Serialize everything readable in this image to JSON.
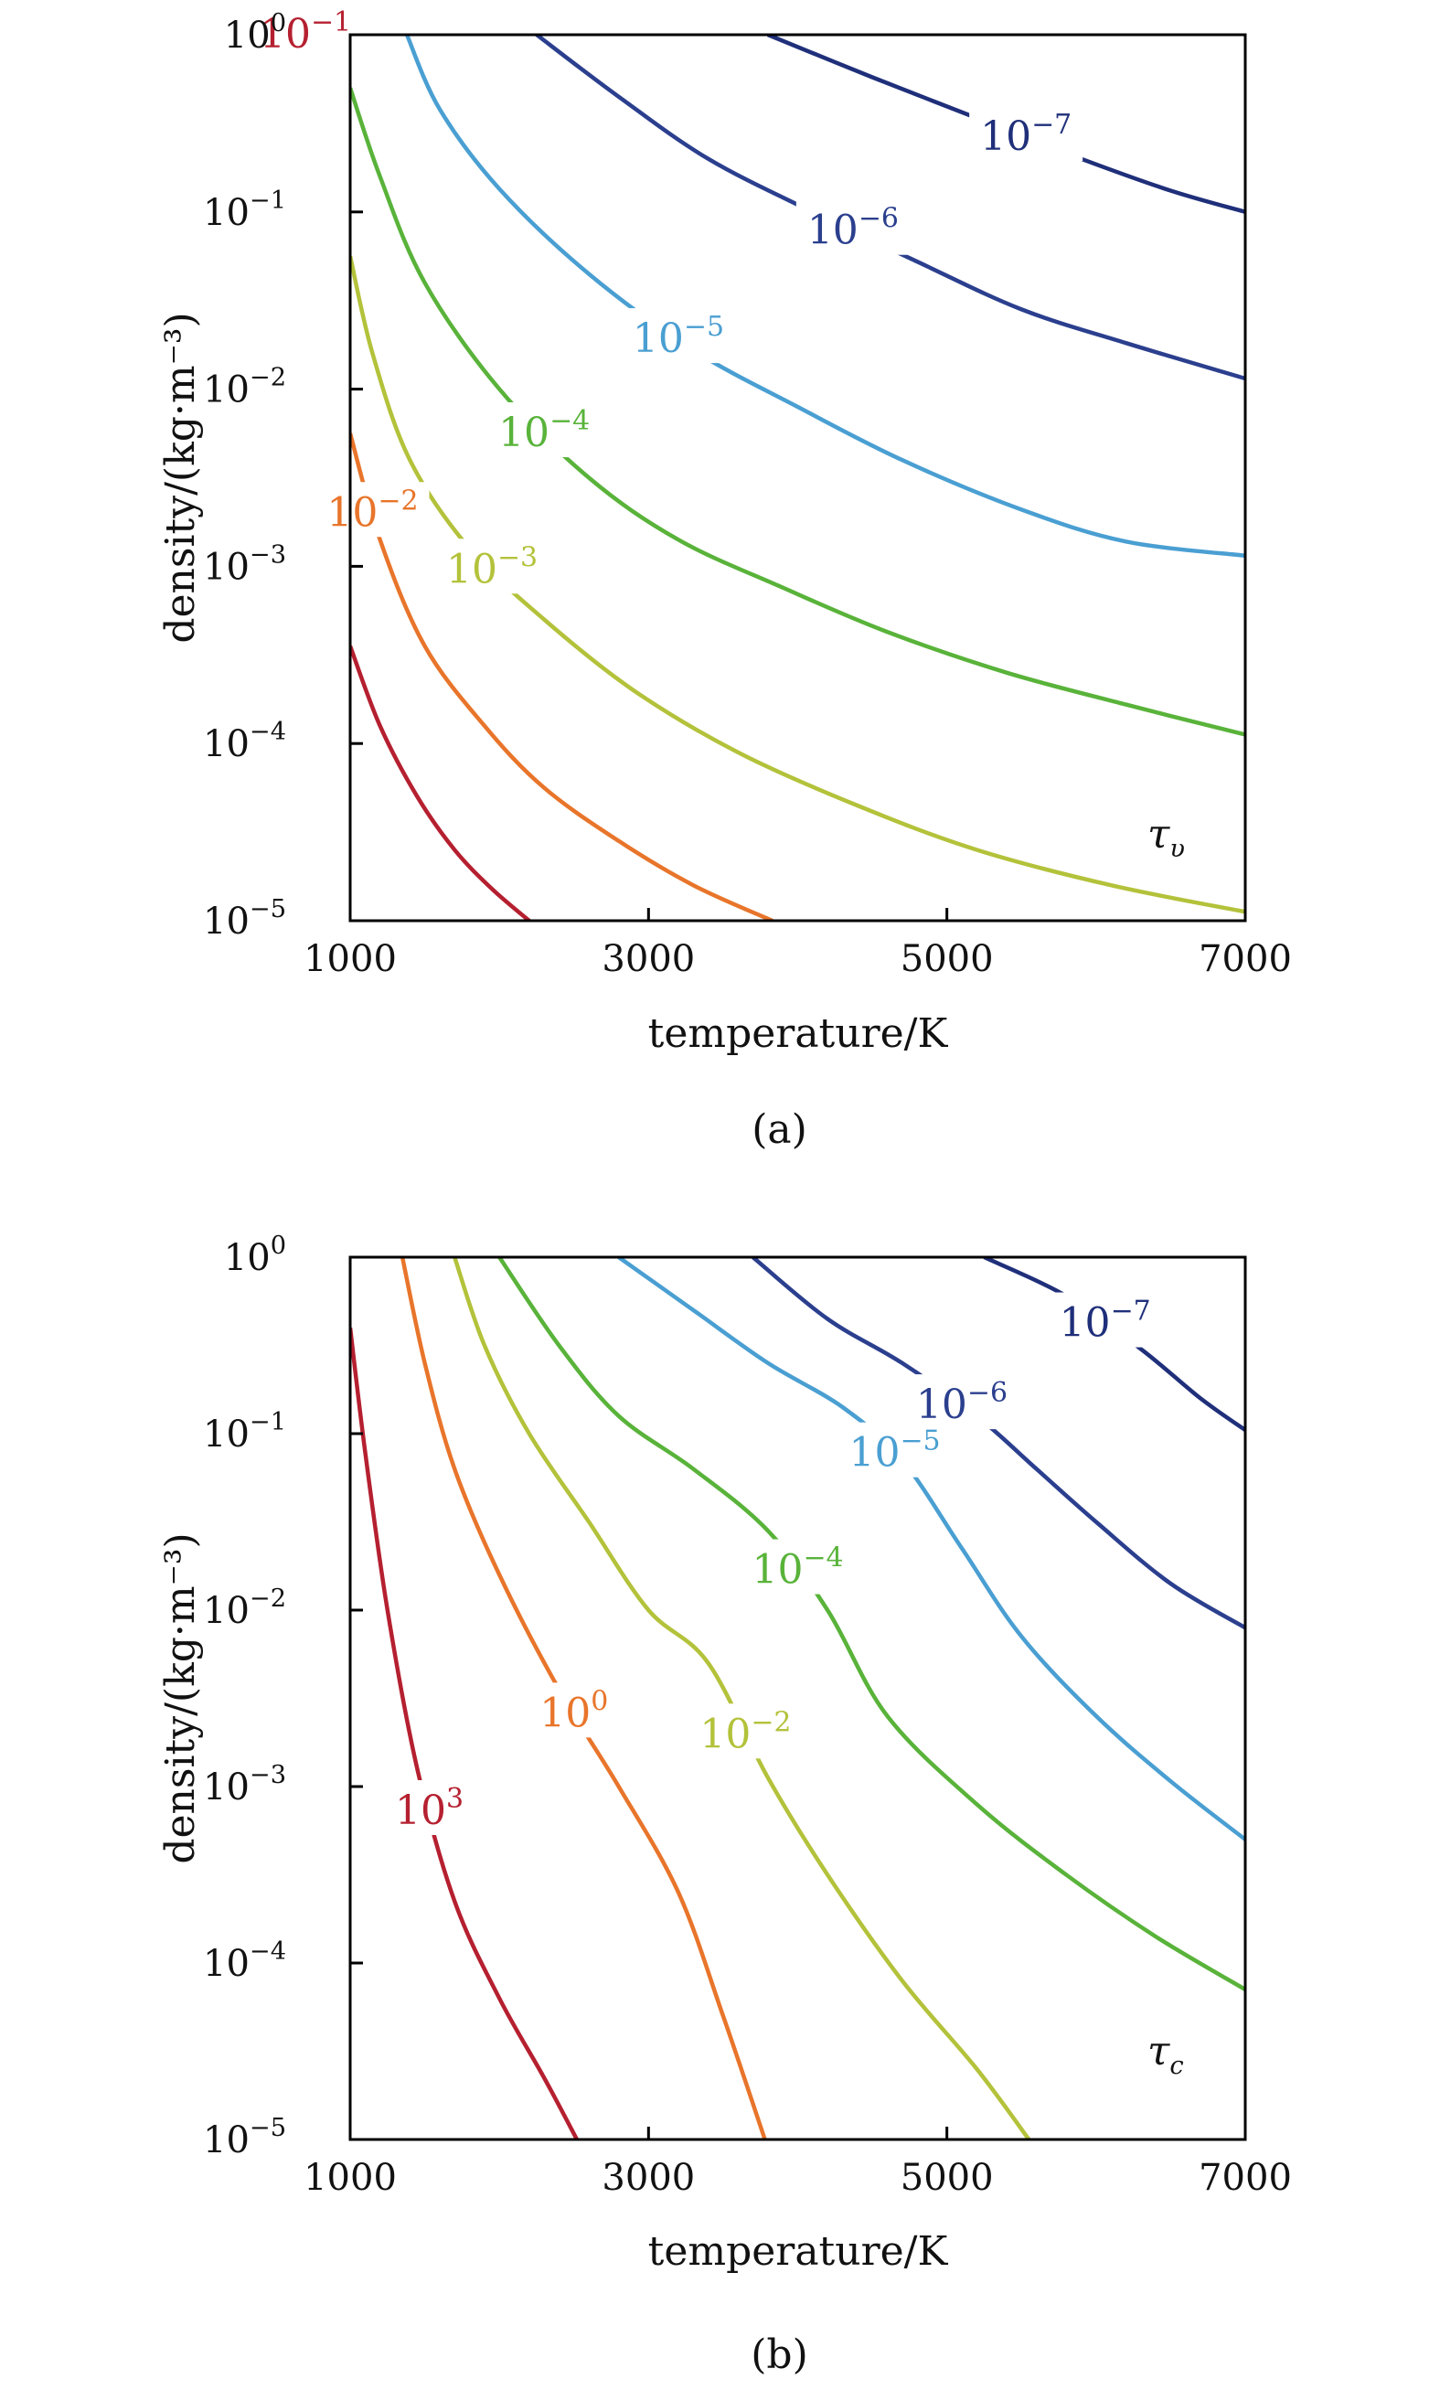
{
  "chart_data": [
    {
      "type": "line",
      "panel": "(a)",
      "xlabel": "temperature/K",
      "ylabel": "density/(kg·m⁻³)",
      "xlim": [
        1000,
        7000
      ],
      "ylim_log10": [
        -5,
        0
      ],
      "yscale": "log",
      "x_ticks": [
        "1000",
        "3000",
        "5000",
        "7000"
      ],
      "y_ticks": [
        {
          "base": "10",
          "exp": "0"
        },
        {
          "base": "10",
          "exp": "−1"
        },
        {
          "base": "10",
          "exp": "−2"
        },
        {
          "base": "10",
          "exp": "−3"
        },
        {
          "base": "10",
          "exp": "−4"
        },
        {
          "base": "10",
          "exp": "−5"
        }
      ],
      "symbol_main": "τ",
      "symbol_sub": "υ",
      "series": [
        {
          "label_base": "10",
          "label_exp": "−7",
          "color": "#1f2f7a",
          "x": [
            3800,
            4500,
            5200,
            5900,
            6500,
            7000
          ],
          "log10_y": [
            0,
            -0.24,
            -0.47,
            -0.7,
            -0.88,
            -1.0
          ]
        },
        {
          "label_base": "10",
          "label_exp": "−6",
          "color": "#2b3f8e",
          "x": [
            2250,
            2800,
            3400,
            4100,
            4800,
            5500,
            6200,
            7000
          ],
          "log10_y": [
            0,
            -0.35,
            -0.7,
            -1.0,
            -1.28,
            -1.55,
            -1.74,
            -1.94
          ]
        },
        {
          "label_base": "10",
          "label_exp": "−5",
          "color": "#4a9fd2",
          "x": [
            1380,
            1600,
            2000,
            2600,
            3300,
            4000,
            4700,
            5500,
            6200,
            7000
          ],
          "log10_y": [
            0,
            -0.42,
            -0.87,
            -1.35,
            -1.78,
            -2.1,
            -2.4,
            -2.68,
            -2.86,
            -2.94
          ]
        },
        {
          "label_base": "10",
          "label_exp": "−4",
          "color": "#59b33a",
          "x": [
            1000,
            1200,
            1500,
            2000,
            2600,
            3200,
            3900,
            4600,
            5400,
            6200,
            7000
          ],
          "log10_y": [
            -0.3,
            -0.8,
            -1.4,
            -2.0,
            -2.5,
            -2.85,
            -3.12,
            -3.37,
            -3.6,
            -3.78,
            -3.95
          ]
        },
        {
          "label_base": "10",
          "label_exp": "−3",
          "color": "#b3c23a",
          "x": [
            1000,
            1150,
            1400,
            1800,
            2300,
            2900,
            3600,
            4400,
            5200,
            6100,
            7000
          ],
          "log10_y": [
            -1.25,
            -1.8,
            -2.4,
            -2.9,
            -3.3,
            -3.7,
            -4.05,
            -4.35,
            -4.6,
            -4.8,
            -4.95
          ]
        },
        {
          "label_base": "10",
          "label_exp": "−2",
          "color": "#e8752b",
          "x": [
            1000,
            1200,
            1500,
            1900,
            2300,
            2800,
            3300,
            3830
          ],
          "log10_y": [
            -2.25,
            -2.85,
            -3.45,
            -3.9,
            -4.25,
            -4.55,
            -4.8,
            -5.0
          ]
        },
        {
          "label_base": "10",
          "label_exp": "−1",
          "color": "#b52030",
          "x": [
            1000,
            1200,
            1450,
            1700,
            1950,
            2200
          ],
          "log10_y": [
            -3.45,
            -3.9,
            -4.3,
            -4.6,
            -4.82,
            -5.0
          ]
        }
      ]
    },
    {
      "type": "line",
      "panel": "(b)",
      "xlabel": "temperature/K",
      "ylabel": "density/(kg·m⁻³)",
      "xlim": [
        1000,
        7000
      ],
      "ylim_log10": [
        -5,
        0
      ],
      "yscale": "log",
      "x_ticks": [
        "1000",
        "3000",
        "5000",
        "7000"
      ],
      "y_ticks": [
        {
          "base": "10",
          "exp": "0"
        },
        {
          "base": "10",
          "exp": "−1"
        },
        {
          "base": "10",
          "exp": "−2"
        },
        {
          "base": "10",
          "exp": "−3"
        },
        {
          "base": "10",
          "exp": "−4"
        },
        {
          "base": "10",
          "exp": "−5"
        }
      ],
      "symbol_main": "τ",
      "symbol_sub": "c",
      "series": [
        {
          "label_base": "10",
          "label_exp": "−7",
          "color": "#1f2f7a",
          "x": [
            5250,
            5800,
            6300,
            6700,
            7000
          ],
          "log10_y": [
            0,
            -0.22,
            -0.52,
            -0.8,
            -0.98
          ]
        },
        {
          "label_base": "10",
          "label_exp": "−6",
          "color": "#2b3f8e",
          "x": [
            3700,
            4200,
            4700,
            5200,
            5600,
            6000,
            6500,
            7000
          ],
          "log10_y": [
            0,
            -0.35,
            -0.6,
            -0.9,
            -1.2,
            -1.5,
            -1.85,
            -2.1
          ]
        },
        {
          "label_base": "10",
          "label_exp": "−5",
          "color": "#4a9fd2",
          "x": [
            2800,
            3300,
            3800,
            4300,
            4700,
            5100,
            5500,
            6000,
            6500,
            7000
          ],
          "log10_y": [
            0,
            -0.3,
            -0.6,
            -0.85,
            -1.15,
            -1.65,
            -2.15,
            -2.6,
            -2.97,
            -3.3
          ]
        },
        {
          "label_base": "10",
          "label_exp": "−4",
          "color": "#59b33a",
          "x": [
            2000,
            2400,
            2800,
            3300,
            3800,
            4200,
            4600,
            5200,
            5800,
            6400,
            7000
          ],
          "log10_y": [
            0,
            -0.5,
            -0.9,
            -1.2,
            -1.55,
            -2.0,
            -2.6,
            -3.1,
            -3.5,
            -3.85,
            -4.15
          ]
        },
        {
          "label_base": "10",
          "label_exp": "−2",
          "color": "#b3c23a",
          "x": [
            1700,
            1900,
            2200,
            2600,
            3000,
            3400,
            3800,
            4200,
            4700,
            5200,
            5550
          ],
          "log10_y": [
            0,
            -0.5,
            -1.0,
            -1.5,
            -2.0,
            -2.3,
            -2.95,
            -3.5,
            -4.1,
            -4.6,
            -5.0
          ]
        },
        {
          "label_base": "10",
          "label_exp": "0",
          "color": "#e8752b",
          "x": [
            1350,
            1500,
            1700,
            2000,
            2400,
            2800,
            3200,
            3500,
            3780
          ],
          "log10_y": [
            0,
            -0.6,
            -1.2,
            -1.8,
            -2.45,
            -3.0,
            -3.6,
            -4.3,
            -5.0
          ]
        },
        {
          "label_base": "10",
          "label_exp": "3",
          "color": "#b52030",
          "x": [
            1000,
            1100,
            1250,
            1450,
            1700,
            2000,
            2300,
            2520
          ],
          "log10_y": [
            -0.4,
            -1.1,
            -2.0,
            -2.9,
            -3.65,
            -4.2,
            -4.65,
            -5.0
          ]
        }
      ]
    }
  ],
  "captions": [
    "(a)",
    "(b)"
  ]
}
